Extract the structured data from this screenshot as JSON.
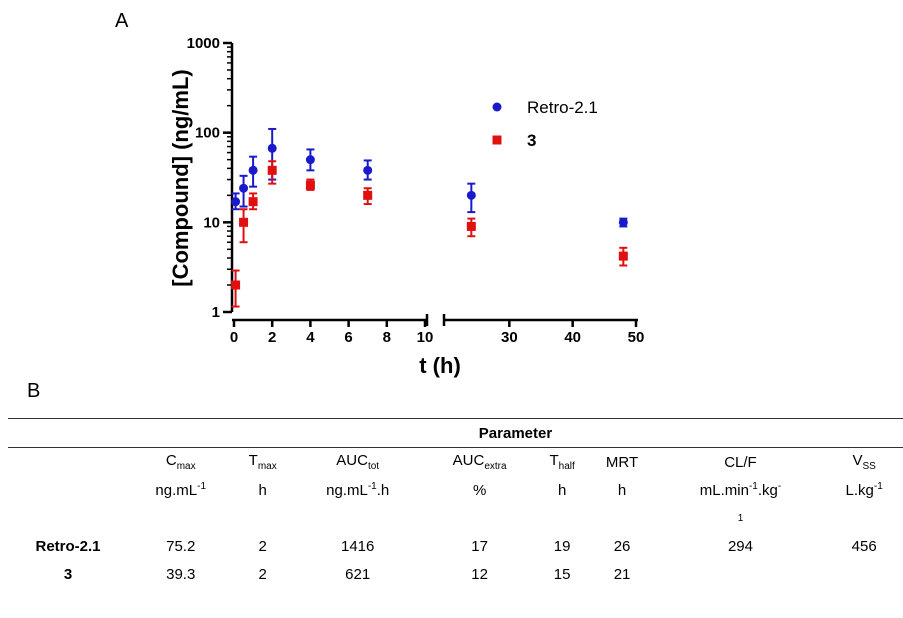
{
  "panel_a_label": "A",
  "panel_b_label": "B",
  "chart_data": {
    "type": "scatter",
    "title": "",
    "xlabel": "t (h)",
    "ylabel": "[Compound] (ng/mL)",
    "y_scale": "log",
    "ylim": [
      1,
      1000
    ],
    "y_ticks": [
      1,
      10,
      100,
      1000
    ],
    "x_axis_broken": true,
    "x_segments": [
      {
        "range": [
          0,
          10
        ],
        "ticks": [
          0,
          2,
          4,
          6,
          8,
          10
        ]
      },
      {
        "range": [
          20,
          50
        ],
        "ticks": [
          30,
          40,
          50
        ]
      }
    ],
    "legend_position": "top-right",
    "series": [
      {
        "name": "Retro-2.1",
        "color": "#1a1acc",
        "marker": "circle",
        "points": [
          {
            "x": 0.083,
            "y": 17,
            "err_low": 14,
            "err_high": 21
          },
          {
            "x": 0.5,
            "y": 24,
            "err_low": 15,
            "err_high": 33
          },
          {
            "x": 1,
            "y": 38,
            "err_low": 25,
            "err_high": 54
          },
          {
            "x": 2,
            "y": 67,
            "err_low": 30,
            "err_high": 110
          },
          {
            "x": 4,
            "y": 50,
            "err_low": 38,
            "err_high": 65
          },
          {
            "x": 7,
            "y": 38,
            "err_low": 30,
            "err_high": 49
          },
          {
            "x": 24,
            "y": 20,
            "err_low": 13,
            "err_high": 27
          },
          {
            "x": 48,
            "y": 10,
            "err_low": 9,
            "err_high": 11
          }
        ]
      },
      {
        "name": "3",
        "color": "#e01010",
        "marker": "square",
        "points": [
          {
            "x": 0.083,
            "y": 2,
            "err_low": 1.15,
            "err_high": 2.9
          },
          {
            "x": 0.5,
            "y": 10,
            "err_low": 6,
            "err_high": 14
          },
          {
            "x": 1,
            "y": 17,
            "err_low": 14,
            "err_high": 21
          },
          {
            "x": 2,
            "y": 38,
            "err_low": 27,
            "err_high": 48
          },
          {
            "x": 4,
            "y": 26,
            "err_low": 23,
            "err_high": 30
          },
          {
            "x": 7,
            "y": 20,
            "err_low": 16,
            "err_high": 24
          },
          {
            "x": 24,
            "y": 9,
            "err_low": 7,
            "err_high": 11
          },
          {
            "x": 48,
            "y": 4.2,
            "err_low": 3.3,
            "err_high": 5.2
          }
        ]
      }
    ]
  },
  "table": {
    "group_header": "Parameter",
    "columns": [
      {
        "name": "C",
        "sub": "max",
        "unit_pre": "ng.mL",
        "unit_sup": "-1",
        "unit_post": ""
      },
      {
        "name": "T",
        "sub": "max",
        "unit_pre": "h",
        "unit_sup": "",
        "unit_post": ""
      },
      {
        "name": "AUC",
        "sub": "tot",
        "unit_pre": "ng.mL",
        "unit_sup": "-1",
        "unit_post": ".h"
      },
      {
        "name": "AUC",
        "sub": "extra",
        "unit_pre": "%",
        "unit_sup": "",
        "unit_post": ""
      },
      {
        "name": "T",
        "sub": "half",
        "unit_pre": "h",
        "unit_sup": "",
        "unit_post": ""
      },
      {
        "name": "MRT",
        "sub": "",
        "unit_pre": "h",
        "unit_sup": "",
        "unit_post": ""
      },
      {
        "name": "CL/F",
        "sub": "",
        "unit_pre": "mL.min",
        "unit_sup": "-1",
        "unit_post": ".kg",
        "unit_post_sup": "-",
        "unit_wrap": "1"
      },
      {
        "name": "V",
        "sub": "SS",
        "unit_pre": "L.kg",
        "unit_sup": "-1",
        "unit_post": ""
      }
    ],
    "rows": [
      {
        "label": "Retro-2.1",
        "values": [
          "75.2",
          "2",
          "1416",
          "17",
          "19",
          "26",
          "294",
          "456"
        ]
      },
      {
        "label": "3",
        "values": [
          "39.3",
          "2",
          "621",
          "12",
          "15",
          "21",
          "",
          ""
        ]
      }
    ]
  }
}
